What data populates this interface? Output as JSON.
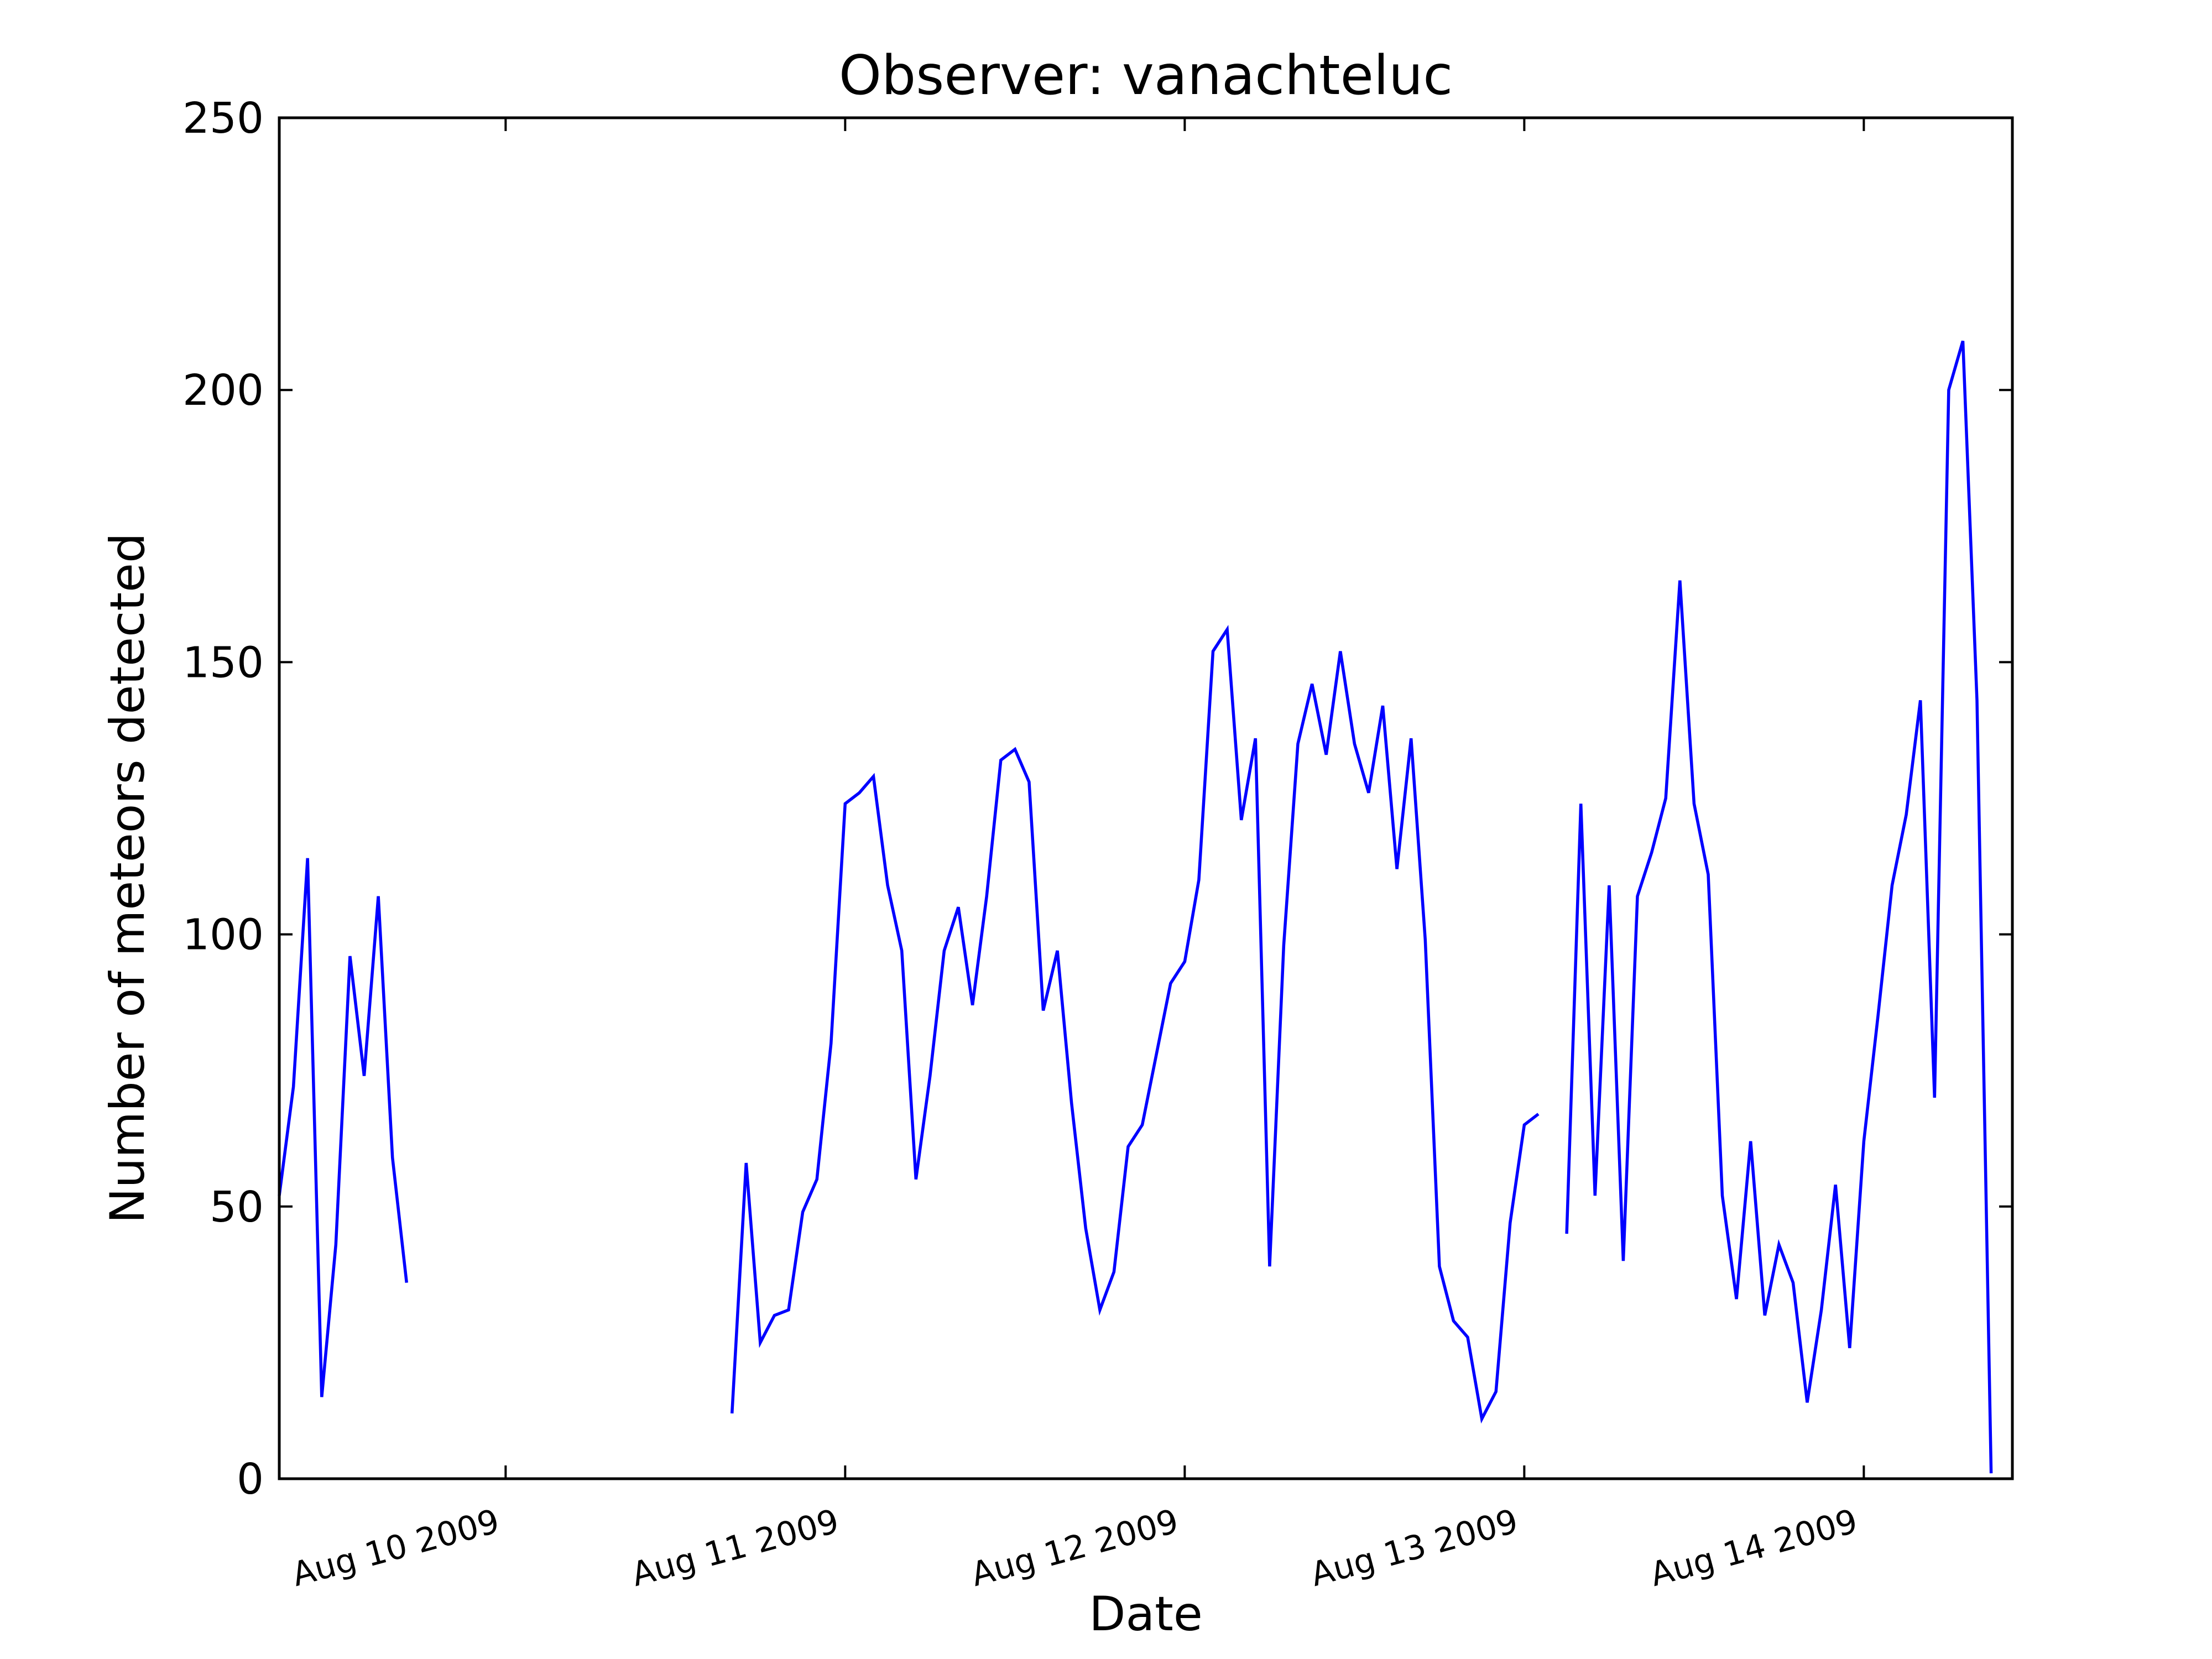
{
  "chart_data": {
    "type": "line",
    "title": "Observer: vanachteluc",
    "xlabel": "Date",
    "ylabel": "Number of meteors detected",
    "ylim": [
      0,
      250
    ],
    "yticks": [
      0,
      50,
      100,
      150,
      200,
      250
    ],
    "xlim": [
      "2009-08-09 08:00",
      "2009-08-14 10:30"
    ],
    "xticks": [
      {
        "label": "Aug 10 2009",
        "date": "2009-08-10 00:00"
      },
      {
        "label": "Aug 11 2009",
        "date": "2009-08-11 00:00"
      },
      {
        "label": "Aug 12 2009",
        "date": "2009-08-12 00:00"
      },
      {
        "label": "Aug 13 2009",
        "date": "2009-08-13 00:00"
      },
      {
        "label": "Aug 14 2009",
        "date": "2009-08-14 00:00"
      }
    ],
    "grid": false,
    "series_color": "#0000ff",
    "series": [
      {
        "segments": [
          [
            [
              "2009-08-09 08:00",
              52
            ],
            [
              "2009-08-09 09:00",
              72
            ],
            [
              "2009-08-09 10:00",
              114
            ],
            [
              "2009-08-09 11:00",
              15
            ],
            [
              "2009-08-09 12:00",
              43
            ],
            [
              "2009-08-09 13:00",
              96
            ],
            [
              "2009-08-09 14:00",
              74
            ],
            [
              "2009-08-09 15:00",
              107
            ],
            [
              "2009-08-09 16:00",
              59
            ],
            [
              "2009-08-09 17:00",
              36
            ]
          ],
          [
            [
              "2009-08-10 16:00",
              12
            ],
            [
              "2009-08-10 17:00",
              58
            ],
            [
              "2009-08-10 18:00",
              25
            ],
            [
              "2009-08-10 19:00",
              30
            ],
            [
              "2009-08-10 20:00",
              31
            ],
            [
              "2009-08-10 21:00",
              49
            ],
            [
              "2009-08-10 22:00",
              55
            ],
            [
              "2009-08-10 23:00",
              80
            ],
            [
              "2009-08-11 00:00",
              124
            ],
            [
              "2009-08-11 01:00",
              126
            ],
            [
              "2009-08-11 02:00",
              129
            ],
            [
              "2009-08-11 03:00",
              109
            ],
            [
              "2009-08-11 04:00",
              97
            ],
            [
              "2009-08-11 05:00",
              55
            ],
            [
              "2009-08-11 06:00",
              74
            ],
            [
              "2009-08-11 07:00",
              97
            ],
            [
              "2009-08-11 08:00",
              105
            ],
            [
              "2009-08-11 09:00",
              87
            ],
            [
              "2009-08-11 10:00",
              107
            ],
            [
              "2009-08-11 11:00",
              132
            ],
            [
              "2009-08-11 12:00",
              134
            ],
            [
              "2009-08-11 13:00",
              128
            ],
            [
              "2009-08-11 14:00",
              86
            ],
            [
              "2009-08-11 15:00",
              97
            ],
            [
              "2009-08-11 16:00",
              69
            ],
            [
              "2009-08-11 17:00",
              46
            ],
            [
              "2009-08-11 18:00",
              31
            ],
            [
              "2009-08-11 19:00",
              38
            ],
            [
              "2009-08-11 20:00",
              61
            ],
            [
              "2009-08-11 21:00",
              65
            ],
            [
              "2009-08-11 22:00",
              78
            ],
            [
              "2009-08-11 23:00",
              91
            ],
            [
              "2009-08-12 00:00",
              95
            ],
            [
              "2009-08-12 01:00",
              110
            ],
            [
              "2009-08-12 02:00",
              152
            ],
            [
              "2009-08-12 03:00",
              156
            ],
            [
              "2009-08-12 04:00",
              121
            ],
            [
              "2009-08-12 05:00",
              136
            ],
            [
              "2009-08-12 06:00",
              39
            ],
            [
              "2009-08-12 07:00",
              98
            ],
            [
              "2009-08-12 08:00",
              135
            ],
            [
              "2009-08-12 09:00",
              146
            ],
            [
              "2009-08-12 10:00",
              133
            ],
            [
              "2009-08-12 11:00",
              152
            ],
            [
              "2009-08-12 12:00",
              135
            ],
            [
              "2009-08-12 13:00",
              126
            ],
            [
              "2009-08-12 14:00",
              142
            ],
            [
              "2009-08-12 15:00",
              112
            ],
            [
              "2009-08-12 16:00",
              136
            ],
            [
              "2009-08-12 17:00",
              99
            ],
            [
              "2009-08-12 18:00",
              39
            ],
            [
              "2009-08-12 19:00",
              29
            ],
            [
              "2009-08-12 20:00",
              26
            ],
            [
              "2009-08-12 21:00",
              11
            ],
            [
              "2009-08-12 22:00",
              16
            ],
            [
              "2009-08-12 23:00",
              47
            ],
            [
              "2009-08-13 00:00",
              65
            ],
            [
              "2009-08-13 01:00",
              67
            ]
          ],
          [
            [
              "2009-08-13 03:00",
              45
            ],
            [
              "2009-08-13 04:00",
              124
            ],
            [
              "2009-08-13 05:00",
              52
            ],
            [
              "2009-08-13 06:00",
              109
            ],
            [
              "2009-08-13 07:00",
              40
            ],
            [
              "2009-08-13 08:00",
              107
            ],
            [
              "2009-08-13 09:00",
              115
            ],
            [
              "2009-08-13 10:00",
              125
            ],
            [
              "2009-08-13 11:00",
              165
            ],
            [
              "2009-08-13 12:00",
              124
            ],
            [
              "2009-08-13 13:00",
              111
            ],
            [
              "2009-08-13 14:00",
              52
            ],
            [
              "2009-08-13 15:00",
              33
            ],
            [
              "2009-08-13 16:00",
              62
            ],
            [
              "2009-08-13 17:00",
              30
            ],
            [
              "2009-08-13 18:00",
              43
            ],
            [
              "2009-08-13 19:00",
              36
            ],
            [
              "2009-08-13 20:00",
              14
            ],
            [
              "2009-08-13 21:00",
              31
            ],
            [
              "2009-08-13 22:00",
              54
            ],
            [
              "2009-08-13 23:00",
              24
            ],
            [
              "2009-08-14 00:00",
              62
            ],
            [
              "2009-08-14 01:00",
              85
            ],
            [
              "2009-08-14 02:00",
              109
            ],
            [
              "2009-08-14 03:00",
              122
            ],
            [
              "2009-08-14 04:00",
              143
            ],
            [
              "2009-08-14 05:00",
              70
            ],
            [
              "2009-08-14 06:00",
              200
            ],
            [
              "2009-08-14 07:00",
              209
            ],
            [
              "2009-08-14 08:00",
              143
            ],
            [
              "2009-08-14 09:00",
              1
            ]
          ]
        ]
      }
    ]
  }
}
